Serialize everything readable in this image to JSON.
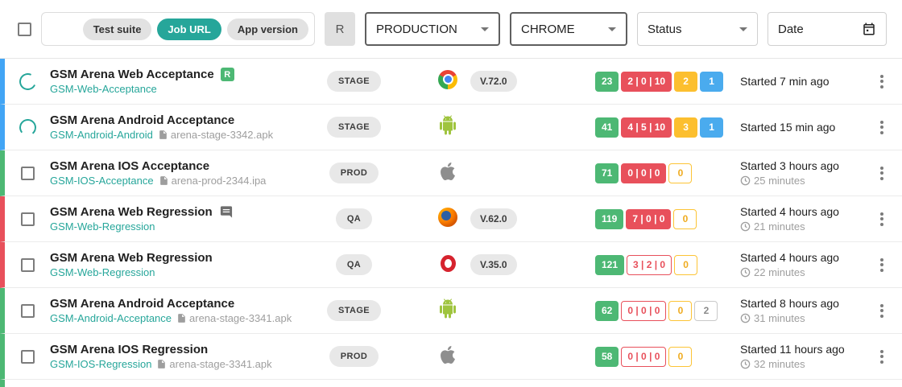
{
  "toolbar": {
    "search_filters": [
      {
        "label": "Test suite",
        "active": false
      },
      {
        "label": "Job URL",
        "active": true
      },
      {
        "label": "App version",
        "active": false
      }
    ],
    "review_toggle_label": "R",
    "environment_dropdown": {
      "value": "PRODUCTION"
    },
    "platform_dropdown": {
      "value": "CHROME"
    },
    "status_dropdown": {
      "value": "Status"
    },
    "date_field": {
      "value": "Date"
    }
  },
  "colors": {
    "teal_accent": "#26a69a",
    "passed_green": "#4db874",
    "failed_red": "#e8505b",
    "skipped_amber": "#fcbf2f",
    "queued_blue": "#4aabee",
    "in_progress_blue": "#42a5f5"
  },
  "rows": [
    {
      "status": "in-progress",
      "selector": "spinner",
      "title": "GSM Arena Web Acceptance",
      "review_badge": "R",
      "has_comment": false,
      "job_name": "GSM-Web-Acceptance",
      "artifact": null,
      "environment": "STAGE",
      "platform": "chrome",
      "version": "V.72.0",
      "counters": [
        {
          "value": "23",
          "style": "green-solid"
        },
        {
          "value": "2 | 0 | 10",
          "style": "red-solid"
        },
        {
          "value": "2",
          "style": "amber-solid"
        },
        {
          "value": "1",
          "style": "blue-solid"
        }
      ],
      "started": "Started 7 min ago",
      "elapsed": null
    },
    {
      "status": "in-progress",
      "selector": "spinner",
      "title": "GSM Arena Android Acceptance",
      "review_badge": null,
      "has_comment": false,
      "job_name": "GSM-Android-Android",
      "artifact": "arena-stage-3342.apk",
      "environment": "STAGE",
      "platform": "android",
      "version": null,
      "counters": [
        {
          "value": "41",
          "style": "green-solid"
        },
        {
          "value": "4 | 5 | 10",
          "style": "red-solid"
        },
        {
          "value": "3",
          "style": "amber-solid"
        },
        {
          "value": "1",
          "style": "blue-solid"
        }
      ],
      "started": "Started 15 min ago",
      "elapsed": null
    },
    {
      "status": "passed",
      "selector": "checkbox",
      "title": "GSM Arena IOS Acceptance",
      "review_badge": null,
      "has_comment": false,
      "job_name": "GSM-IOS-Acceptance",
      "artifact": "arena-prod-2344.ipa",
      "environment": "PROD",
      "platform": "apple",
      "version": null,
      "counters": [
        {
          "value": "71",
          "style": "green-solid"
        },
        {
          "value": "0 | 0 | 0",
          "style": "red-solid"
        },
        {
          "value": "0",
          "style": "amber-outline"
        }
      ],
      "started": "Started 3 hours ago",
      "elapsed": "25 minutes"
    },
    {
      "status": "failed",
      "selector": "checkbox",
      "title": "GSM Arena Web Regression",
      "review_badge": null,
      "has_comment": true,
      "job_name": "GSM-Web-Regression",
      "artifact": null,
      "environment": "QA",
      "platform": "firefox",
      "version": "V.62.0",
      "counters": [
        {
          "value": "119",
          "style": "green-solid"
        },
        {
          "value": "7 | 0 | 0",
          "style": "red-solid"
        },
        {
          "value": "0",
          "style": "amber-outline"
        }
      ],
      "started": "Started 4 hours ago",
      "elapsed": "21 minutes"
    },
    {
      "status": "failed",
      "selector": "checkbox",
      "title": "GSM Arena Web Regression",
      "review_badge": null,
      "has_comment": false,
      "job_name": "GSM-Web-Regression",
      "artifact": null,
      "environment": "QA",
      "platform": "opera",
      "version": "V.35.0",
      "counters": [
        {
          "value": "121",
          "style": "green-solid"
        },
        {
          "value": "3 | 2 | 0",
          "style": "red-outline"
        },
        {
          "value": "0",
          "style": "amber-outline"
        }
      ],
      "started": "Started 4 hours ago",
      "elapsed": "22 minutes"
    },
    {
      "status": "passed",
      "selector": "checkbox",
      "title": "GSM Arena Android Acceptance",
      "review_badge": null,
      "has_comment": false,
      "job_name": "GSM-Android-Acceptance",
      "artifact": "arena-stage-3341.apk",
      "environment": "STAGE",
      "platform": "android",
      "version": null,
      "counters": [
        {
          "value": "62",
          "style": "green-solid"
        },
        {
          "value": "0 | 0 | 0",
          "style": "red-outline"
        },
        {
          "value": "0",
          "style": "amber-outline"
        },
        {
          "value": "2",
          "style": "gray-outline"
        }
      ],
      "started": "Started 8 hours ago",
      "elapsed": "31 minutes"
    },
    {
      "status": "passed",
      "selector": "checkbox",
      "title": "GSM Arena IOS Regression",
      "review_badge": null,
      "has_comment": false,
      "job_name": "GSM-IOS-Regression",
      "artifact": "arena-stage-3341.apk",
      "environment": "PROD",
      "platform": "apple",
      "version": null,
      "counters": [
        {
          "value": "58",
          "style": "green-solid"
        },
        {
          "value": "0 | 0 | 0",
          "style": "red-outline"
        },
        {
          "value": "0",
          "style": "amber-outline"
        }
      ],
      "started": "Started 11 hours ago",
      "elapsed": "32 minutes"
    }
  ],
  "partial_row": {
    "status": "passed"
  }
}
